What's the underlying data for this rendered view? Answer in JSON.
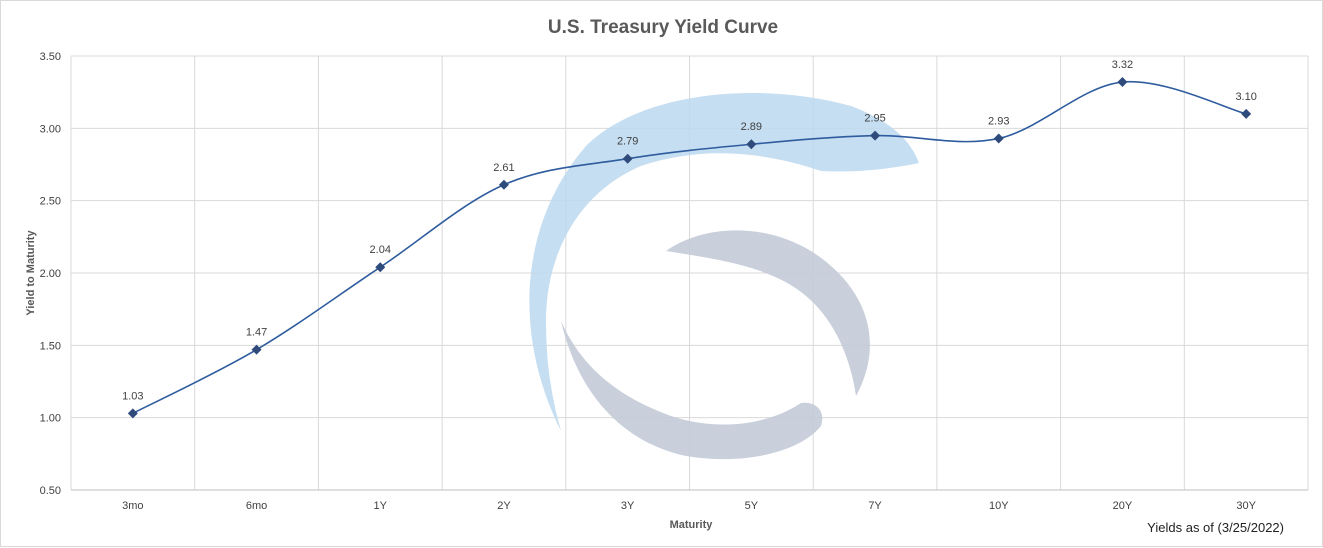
{
  "chart_data": {
    "type": "line",
    "title": "U.S. Treasury Yield Curve",
    "xlabel": "Maturity",
    "ylabel": "Yield to Maturity",
    "categories": [
      "3mo",
      "6mo",
      "1Y",
      "2Y",
      "3Y",
      "5Y",
      "7Y",
      "10Y",
      "20Y",
      "30Y"
    ],
    "series": [
      {
        "values": [
          1.03,
          1.47,
          2.04,
          2.61,
          2.79,
          2.89,
          2.95,
          2.93,
          3.32,
          3.1
        ]
      }
    ],
    "value_labels": [
      "1.03",
      "1.47",
      "2.04",
      "2.61",
      "2.79",
      "2.89",
      "2.95",
      "2.93",
      "3.32",
      "3.10"
    ],
    "ylim": [
      0.5,
      3.5
    ],
    "yticks": [
      "0.50",
      "1.00",
      "1.50",
      "2.00",
      "2.50",
      "3.00",
      "3.50"
    ],
    "grid": true,
    "line_color": "#2e5c9e",
    "marker_color": "#2f4b7c",
    "note": "Yields as of (3/25/2022)"
  },
  "watermark": {
    "name": "logo-watermark",
    "colors": [
      "#bcd8ee",
      "#c3cbd8"
    ]
  }
}
